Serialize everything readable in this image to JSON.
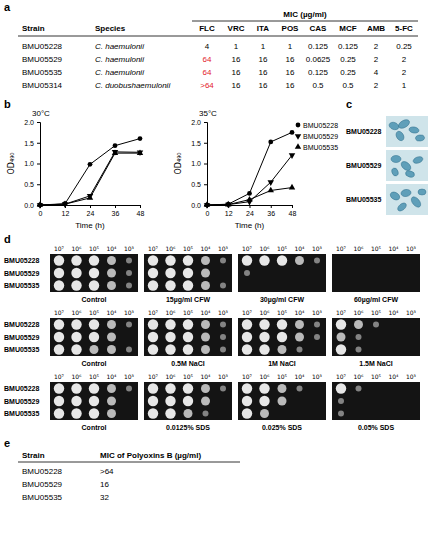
{
  "panel_letters": [
    "a",
    "b",
    "c",
    "d",
    "e"
  ],
  "table_a": {
    "header": {
      "strain": "Strain",
      "species": "Species",
      "mic": "MIC (µg/ml)",
      "drugs": [
        "FLC",
        "VRC",
        "ITA",
        "POS",
        "CAS",
        "MCF",
        "AMB",
        "5-FC"
      ]
    },
    "rows": [
      {
        "strain": "BMU05228",
        "species": "C. haemulonii",
        "values": [
          4,
          1,
          1,
          1,
          0.125,
          0.125,
          2,
          0.25
        ],
        "colors": [
          "#000000",
          "#000000",
          "#000000",
          "#000000",
          "#000000",
          "#000000",
          "#000000",
          "#000000"
        ]
      },
      {
        "strain": "BMU05529",
        "species": "C. haemulonii",
        "values": [
          64,
          16,
          16,
          16,
          0.0625,
          0.25,
          2,
          2
        ],
        "colors": [
          "#e3202a",
          "#000000",
          "#000000",
          "#000000",
          "#000000",
          "#000000",
          "#000000",
          "#000000"
        ]
      },
      {
        "strain": "BMU05535",
        "species": "C. haemulonii",
        "values": [
          64,
          16,
          16,
          16,
          0.125,
          0.25,
          4,
          2
        ],
        "colors": [
          "#e3202a",
          "#000000",
          "#000000",
          "#000000",
          "#000000",
          "#000000",
          "#000000",
          "#000000"
        ]
      },
      {
        "strain": "BMU05314",
        "species": "C. duobushaemulonii",
        "values": [
          ">64",
          16,
          16,
          16,
          0.5,
          0.5,
          2,
          1
        ],
        "colors": [
          "#e3202a",
          "#000000",
          "#000000",
          "#000000",
          "#000000",
          "#000000",
          "#000000",
          "#000000"
        ]
      }
    ]
  },
  "chart_data": [
    {
      "type": "line",
      "title": "30°C",
      "x_label": "Time (h)",
      "y_label": "OD₄₉₀",
      "x": [
        0,
        12,
        24,
        36,
        48
      ],
      "xlim": [
        0,
        48
      ],
      "xticks": [
        0,
        12,
        24,
        36,
        48
      ],
      "ylim": [
        0,
        2
      ],
      "yticks": [
        {
          "value": 0,
          "label": "0.0"
        },
        {
          "value": 0.5,
          "label": "0.5"
        },
        {
          "value": 1,
          "label": "1.0"
        },
        {
          "value": 1.5,
          "label": "1.5"
        },
        {
          "value": 2,
          "label": "2.0"
        }
      ],
      "series": [
        {
          "color": "#000000",
          "marker": "circle",
          "values": [
            0,
            0.03,
            0.98,
            1.43,
            1.6
          ]
        },
        {
          "color": "#000000",
          "marker": "triangle-down",
          "values": [
            0,
            0.02,
            0.22,
            1.28,
            1.27
          ]
        },
        {
          "color": "#000000",
          "marker": "triangle-up",
          "values": [
            0,
            0.02,
            0.17,
            1.25,
            1.25
          ]
        }
      ]
    },
    {
      "type": "line",
      "title": "35°C",
      "x_label": "Time (h)",
      "y_label": "OD₄₉₀",
      "legend": "right",
      "x": [
        0,
        12,
        24,
        36,
        48
      ],
      "xlim": [
        0,
        48
      ],
      "xticks": [
        0,
        12,
        24,
        36,
        48
      ],
      "ylim": [
        0,
        2
      ],
      "yticks": [
        {
          "value": 0,
          "label": "0.0"
        },
        {
          "value": 0.5,
          "label": "0.5"
        },
        {
          "value": 1,
          "label": "1.0"
        },
        {
          "value": 1.5,
          "label": "1.5"
        },
        {
          "value": 2,
          "label": "2.0"
        }
      ],
      "series": [
        {
          "name": "BMU05228",
          "color": "#000000",
          "marker": "circle",
          "values": [
            0,
            0.02,
            0.28,
            1.52,
            1.75
          ]
        },
        {
          "name": "BMU05529",
          "color": "#000000",
          "marker": "triangle-down",
          "values": [
            0,
            0.01,
            0.08,
            0.55,
            1.2
          ]
        },
        {
          "name": "BMU05535",
          "color": "#000000",
          "marker": "triangle-up",
          "values": [
            0,
            0.01,
            0.13,
            0.35,
            0.42
          ]
        }
      ]
    }
  ],
  "panel_c": {
    "labels": [
      "BMU05228",
      "BMU05529",
      "BMU05535"
    ]
  },
  "panel_d": {
    "strains": [
      "BMU05228",
      "BMU05529",
      "BMU05535"
    ],
    "dilutions": [
      "10⁷",
      "10⁶",
      "10⁵",
      "10⁴",
      "10³"
    ],
    "groups": [
      [
        "Control",
        "15µg/ml CFW",
        "30µg/ml CFW",
        "60µg/ml CFW"
      ],
      [
        "Control",
        "0.5M NaCl",
        "1M NaCl",
        "1.5M NaCl"
      ],
      [
        "Control",
        "0.0125% SDS",
        "0.025% SDS",
        "0.05% SDS"
      ]
    ]
  },
  "table_e": {
    "header": [
      "Strain",
      "MIC of Polyoxins B (µg/ml)"
    ],
    "rows": [
      [
        "BMU05228",
        ">64"
      ],
      [
        "BMU05529",
        16
      ],
      [
        "BMU05535",
        32
      ]
    ]
  }
}
